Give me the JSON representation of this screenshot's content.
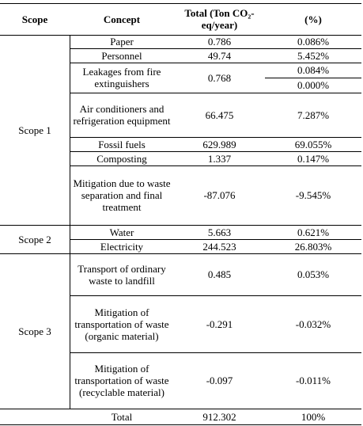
{
  "table": {
    "header": [
      "Scope",
      "Concept",
      "Total (Ton CO₂-eq/year)",
      "(%)"
    ],
    "groups": [
      {
        "scope": "Scope 1",
        "rows": [
          {
            "concept": "Paper",
            "total": 0.786,
            "percent": [
              "0.086%"
            ]
          },
          {
            "concept": "Personnel",
            "total": 49.74,
            "percent": [
              "5.452%"
            ]
          },
          {
            "concept": "Leakages from fire extinguishers",
            "total": 0.768,
            "percent": [
              "0.084%",
              "0.000%"
            ]
          },
          {
            "concept": "Air conditioners and refrigeration equipment",
            "total": 66.475,
            "percent": [
              "7.287%"
            ]
          },
          {
            "concept": "Fossil fuels",
            "total": 629.989,
            "percent": [
              "69.055%"
            ]
          },
          {
            "concept": "Composting",
            "total": 1.337,
            "percent": [
              "0.147%"
            ]
          },
          {
            "concept": "Mitigation due to waste separation and final treatment",
            "total": -87.076,
            "percent": [
              "-9.545%"
            ]
          }
        ]
      },
      {
        "scope": "Scope 2",
        "rows": [
          {
            "concept": "Water",
            "total": 5.663,
            "percent": [
              "0.621%"
            ]
          },
          {
            "concept": "Electricity",
            "total": 244.523,
            "percent": [
              "26.803%"
            ]
          }
        ]
      },
      {
        "scope": "Scope 3",
        "rows": [
          {
            "concept": "Transport of ordinary waste to landfill",
            "total": 0.485,
            "percent": [
              "0.053%"
            ]
          },
          {
            "concept": "Mitigation of transportation of waste (organic material)",
            "total": -0.291,
            "percent": [
              "-0.032%"
            ]
          },
          {
            "concept": "Mitigation of transportation of waste (recyclable material)",
            "total": -0.097,
            "percent": [
              "-0.011%"
            ]
          }
        ]
      }
    ],
    "total_row": {
      "label": "Total",
      "total": 912.302,
      "percent": "100%"
    }
  }
}
